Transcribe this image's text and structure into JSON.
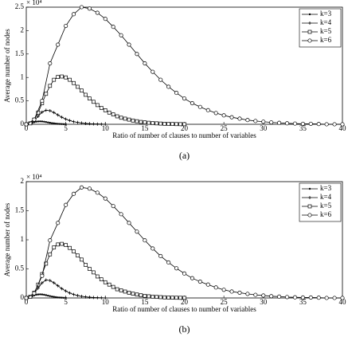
{
  "chart_data": [
    {
      "type": "line",
      "caption": "(a)",
      "xlabel": "Ratio of number of clauses to number of variables",
      "ylabel": "Average number of nodes",
      "y_multiplier": "× 10⁴",
      "xlim": [
        0,
        40
      ],
      "xticks": [
        0,
        5,
        10,
        15,
        20,
        25,
        30,
        35,
        40
      ],
      "ylim": [
        0,
        2.5
      ],
      "yticks": [
        0,
        0.5,
        1,
        1.5,
        2,
        2.5
      ],
      "legend": "upper right",
      "series": [
        {
          "name": "k=3",
          "color": "#000000",
          "marker": "dot",
          "x": [
            0,
            0.25,
            0.5,
            0.75,
            1,
            1.25,
            1.5,
            1.75,
            2,
            2.25,
            2.5,
            2.75,
            3,
            3.25,
            3.5,
            3.75,
            4,
            4.25,
            4.5,
            4.75,
            5
          ],
          "values": [
            0,
            0.005,
            0.015,
            0.03,
            0.045,
            0.055,
            0.06,
            0.062,
            0.06,
            0.055,
            0.048,
            0.04,
            0.032,
            0.025,
            0.019,
            0.014,
            0.01,
            0.007,
            0.005,
            0.003,
            0.002
          ]
        },
        {
          "name": "k=4",
          "color": "#000000",
          "marker": "plus",
          "x": [
            0,
            0.5,
            1,
            1.5,
            2,
            2.5,
            3,
            3.5,
            4,
            4.5,
            5,
            5.5,
            6,
            6.5,
            7,
            7.5,
            8,
            8.5,
            9,
            9.5,
            10
          ],
          "values": [
            0,
            0.02,
            0.08,
            0.17,
            0.26,
            0.3,
            0.29,
            0.25,
            0.2,
            0.15,
            0.11,
            0.08,
            0.055,
            0.04,
            0.027,
            0.018,
            0.012,
            0.008,
            0.005,
            0.003,
            0.002
          ]
        },
        {
          "name": "k=5",
          "color": "#000000",
          "marker": "square",
          "x": [
            0,
            0.5,
            1,
            1.5,
            2,
            2.5,
            3,
            3.5,
            4,
            4.5,
            5,
            5.5,
            6,
            6.5,
            7,
            7.5,
            8,
            8.5,
            9,
            9.5,
            10,
            10.5,
            11,
            11.5,
            12,
            12.5,
            13,
            13.5,
            14,
            14.5,
            15,
            15.5,
            16,
            16.5,
            17,
            17.5,
            18,
            18.5,
            19,
            19.5,
            20
          ],
          "values": [
            0,
            0.02,
            0.1,
            0.25,
            0.45,
            0.65,
            0.82,
            0.95,
            1.01,
            1.02,
            1.0,
            0.95,
            0.88,
            0.8,
            0.72,
            0.63,
            0.55,
            0.48,
            0.41,
            0.35,
            0.3,
            0.25,
            0.21,
            0.17,
            0.14,
            0.12,
            0.1,
            0.08,
            0.065,
            0.05,
            0.04,
            0.032,
            0.025,
            0.02,
            0.015,
            0.011,
            0.008,
            0.006,
            0.004,
            0.003,
            0.002
          ]
        },
        {
          "name": "k=6",
          "color": "#000000",
          "marker": "circle",
          "x": [
            0,
            1,
            2,
            3,
            4,
            5,
            6,
            7,
            8,
            9,
            10,
            11,
            12,
            13,
            14,
            15,
            16,
            17,
            18,
            19,
            20,
            21,
            22,
            23,
            24,
            25,
            26,
            27,
            28,
            29,
            30,
            31,
            32,
            33,
            34,
            35,
            36,
            37,
            38,
            39,
            40
          ],
          "values": [
            0,
            0.1,
            0.5,
            1.3,
            1.7,
            2.1,
            2.35,
            2.5,
            2.47,
            2.38,
            2.25,
            2.08,
            1.9,
            1.7,
            1.5,
            1.3,
            1.12,
            0.95,
            0.8,
            0.67,
            0.55,
            0.45,
            0.37,
            0.3,
            0.24,
            0.19,
            0.15,
            0.12,
            0.09,
            0.07,
            0.055,
            0.04,
            0.03,
            0.02,
            0.015,
            0.01,
            0.01,
            0.005,
            0,
            0,
            0
          ]
        }
      ]
    },
    {
      "type": "line",
      "caption": "(b)",
      "xlabel": "Ratio of number of clauses to number of variables",
      "ylabel": "Average number of nodes",
      "y_multiplier": "× 10⁴",
      "xlim": [
        0,
        40
      ],
      "xticks": [
        0,
        5,
        10,
        15,
        20,
        25,
        30,
        35,
        40
      ],
      "ylim": [
        0,
        2
      ],
      "yticks": [
        0,
        0.5,
        1,
        1.5,
        2
      ],
      "legend": "upper right",
      "series": [
        {
          "name": "k=3",
          "color": "#000000",
          "marker": "dot",
          "x": [
            0,
            0.25,
            0.5,
            0.75,
            1,
            1.25,
            1.5,
            1.75,
            2,
            2.25,
            2.5,
            2.75,
            3,
            3.25,
            3.5,
            3.75,
            4,
            4.25,
            4.5,
            4.75,
            5
          ],
          "values": [
            0,
            0.005,
            0.015,
            0.03,
            0.045,
            0.055,
            0.06,
            0.062,
            0.06,
            0.055,
            0.048,
            0.04,
            0.032,
            0.025,
            0.019,
            0.014,
            0.01,
            0.007,
            0.005,
            0.003,
            0.002
          ]
        },
        {
          "name": "k=4",
          "color": "#000000",
          "marker": "plus",
          "x": [
            0,
            0.5,
            1,
            1.5,
            2,
            2.5,
            3,
            3.5,
            4,
            4.5,
            5,
            5.5,
            6,
            6.5,
            7,
            7.5,
            8,
            8.5,
            9,
            9.5,
            10
          ],
          "values": [
            0,
            0.02,
            0.08,
            0.17,
            0.26,
            0.31,
            0.3,
            0.26,
            0.21,
            0.16,
            0.12,
            0.085,
            0.06,
            0.042,
            0.028,
            0.019,
            0.013,
            0.008,
            0.005,
            0.003,
            0.002
          ]
        },
        {
          "name": "k=5",
          "color": "#000000",
          "marker": "square",
          "x": [
            0,
            0.5,
            1,
            1.5,
            2,
            2.5,
            3,
            3.5,
            4,
            4.5,
            5,
            5.5,
            6,
            6.5,
            7,
            7.5,
            8,
            8.5,
            9,
            9.5,
            10,
            10.5,
            11,
            11.5,
            12,
            12.5,
            13,
            13.5,
            14,
            14.5,
            15,
            15.5,
            16,
            16.5,
            17,
            17.5,
            18,
            18.5,
            19,
            19.5,
            20
          ],
          "values": [
            0,
            0.02,
            0.09,
            0.23,
            0.41,
            0.59,
            0.75,
            0.87,
            0.92,
            0.93,
            0.91,
            0.86,
            0.8,
            0.73,
            0.66,
            0.57,
            0.5,
            0.44,
            0.37,
            0.32,
            0.27,
            0.23,
            0.19,
            0.15,
            0.13,
            0.11,
            0.09,
            0.073,
            0.059,
            0.046,
            0.036,
            0.029,
            0.023,
            0.018,
            0.014,
            0.01,
            0.007,
            0.005,
            0.004,
            0.003,
            0.002
          ]
        },
        {
          "name": "k=6",
          "color": "#000000",
          "marker": "circle",
          "x": [
            0,
            1,
            2,
            3,
            4,
            5,
            6,
            7,
            8,
            9,
            10,
            11,
            12,
            13,
            14,
            15,
            16,
            17,
            18,
            19,
            20,
            21,
            22,
            23,
            24,
            25,
            26,
            27,
            28,
            29,
            30,
            31,
            32,
            33,
            34,
            35,
            36,
            37,
            38,
            39,
            40
          ],
          "values": [
            0,
            0.08,
            0.38,
            0.99,
            1.29,
            1.6,
            1.79,
            1.9,
            1.88,
            1.81,
            1.71,
            1.58,
            1.44,
            1.29,
            1.14,
            0.99,
            0.85,
            0.72,
            0.61,
            0.51,
            0.42,
            0.34,
            0.28,
            0.23,
            0.18,
            0.14,
            0.11,
            0.09,
            0.07,
            0.053,
            0.042,
            0.03,
            0.023,
            0.015,
            0.011,
            0.008,
            0.008,
            0.004,
            0,
            0,
            0
          ]
        }
      ]
    }
  ]
}
